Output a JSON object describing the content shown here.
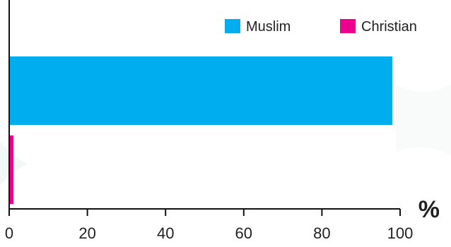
{
  "chart_data": {
    "type": "bar",
    "orientation": "horizontal",
    "series": [
      {
        "name": "Muslim",
        "value": 98,
        "color": "#00aeef"
      },
      {
        "name": "Christian",
        "value": 1,
        "color": "#ec008c"
      }
    ],
    "x_unit": "%",
    "xlim": [
      0,
      100
    ],
    "xticks": [
      "0",
      "20",
      "40",
      "60",
      "80",
      "100"
    ],
    "grid": false,
    "legend_position": "top-right"
  }
}
